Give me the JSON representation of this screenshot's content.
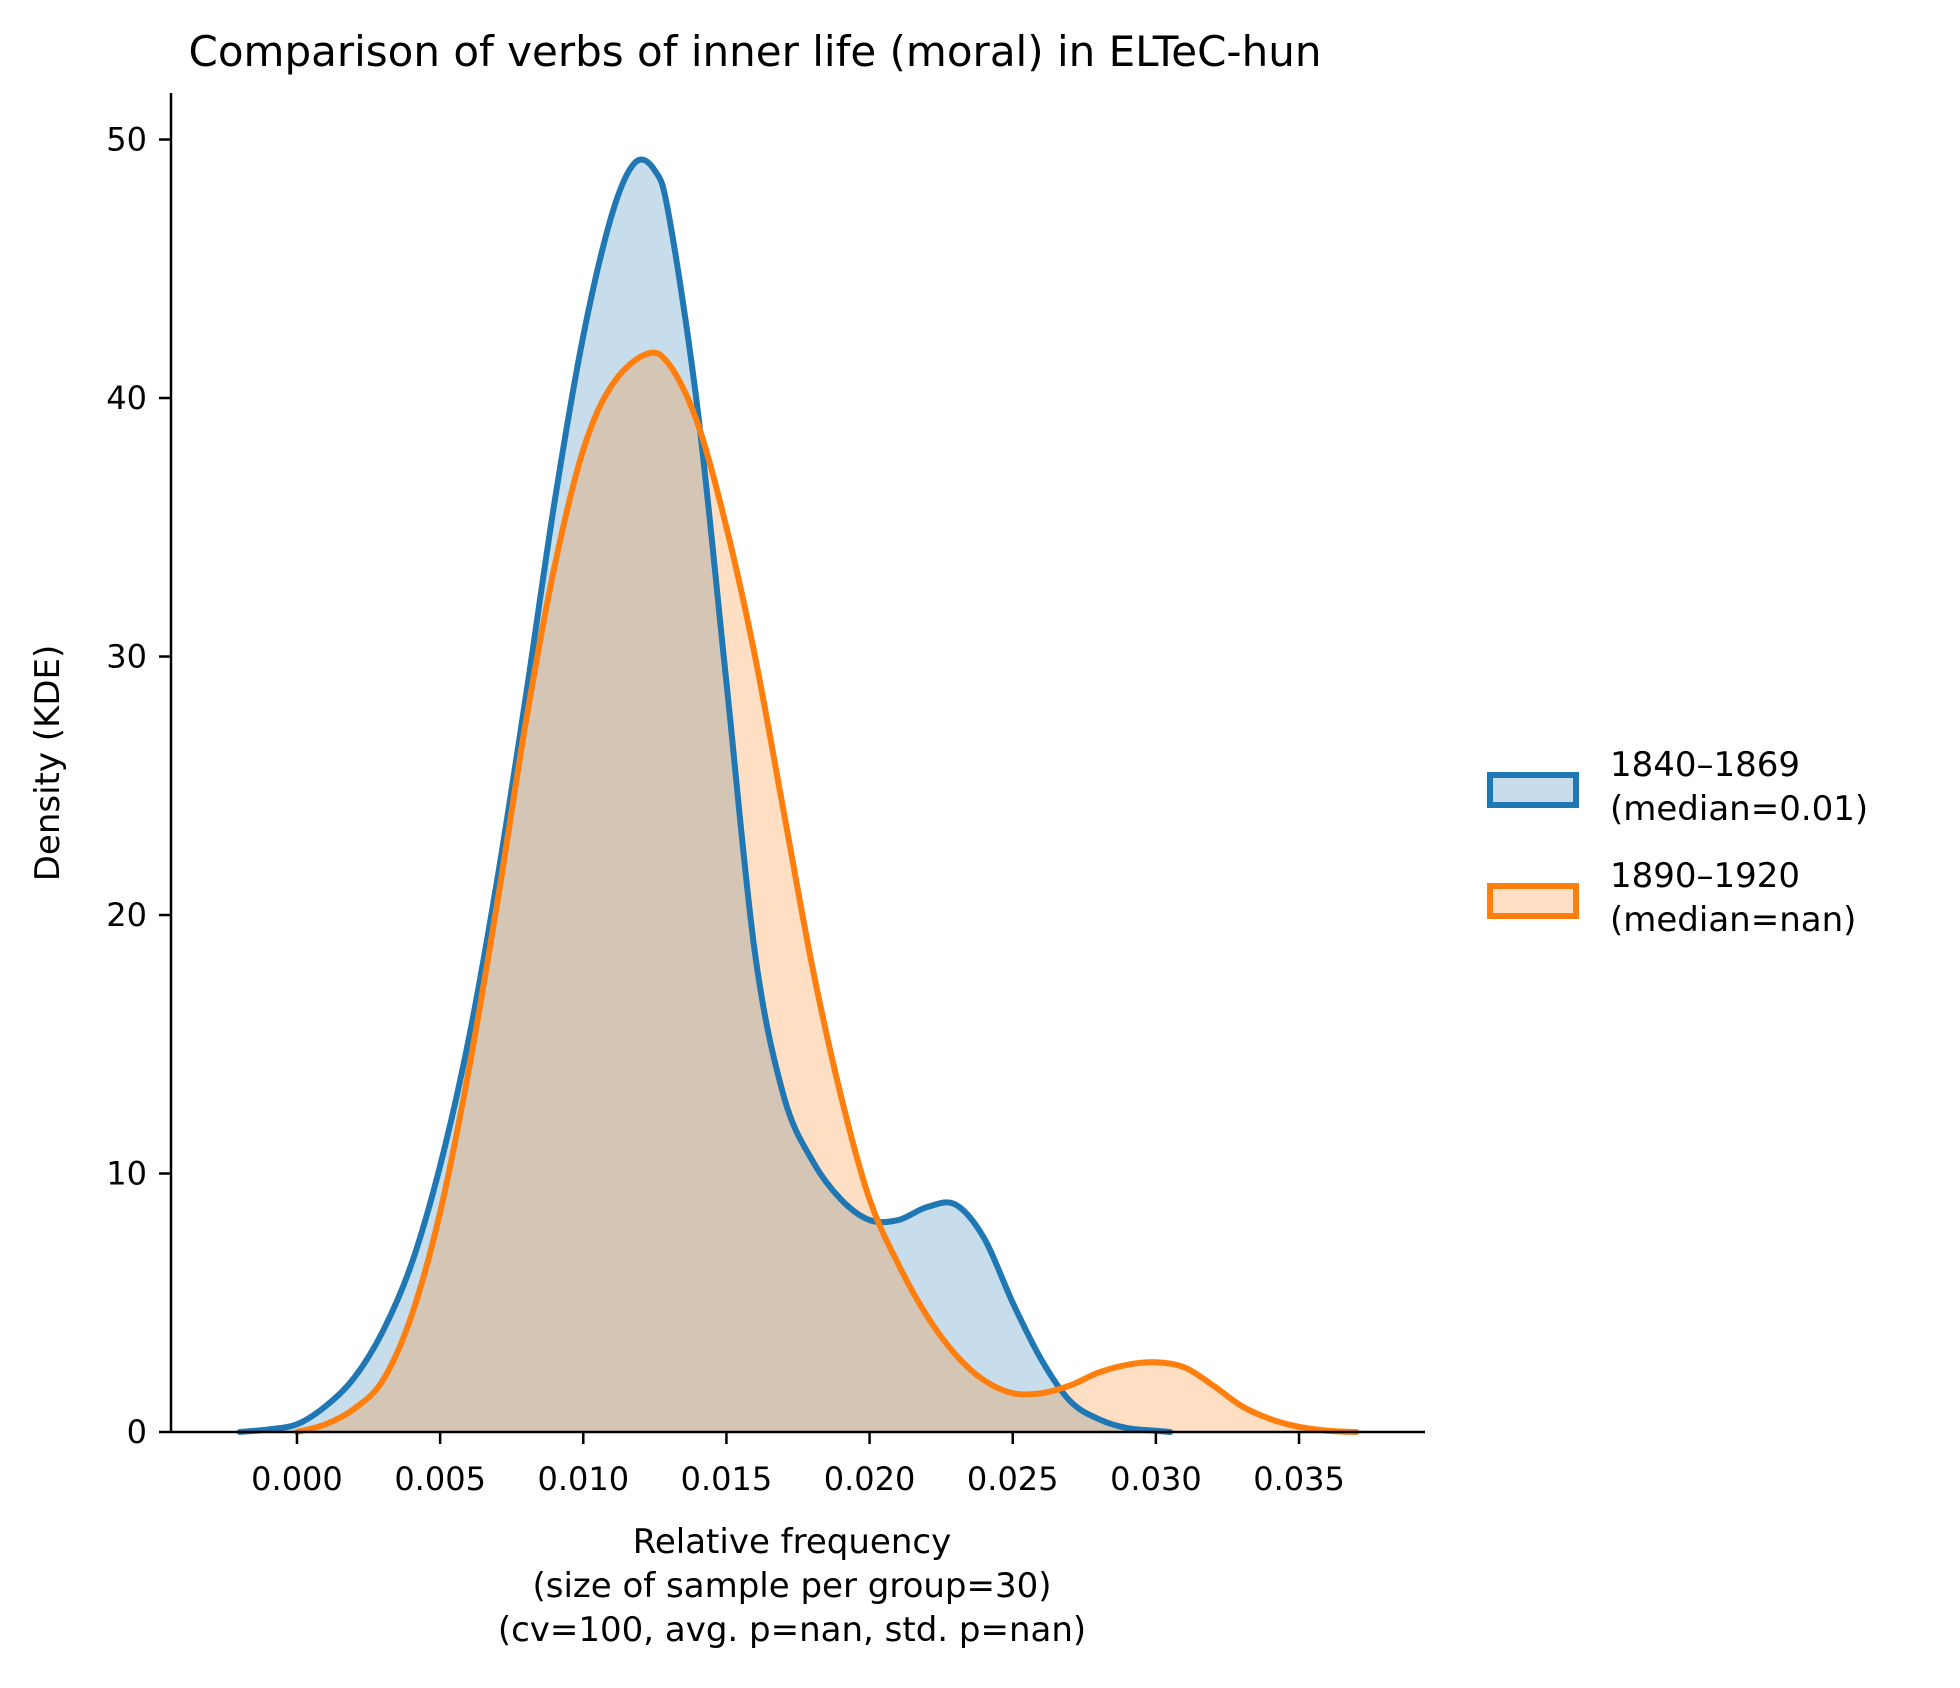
{
  "chart_data": {
    "type": "area",
    "title": "Comparison of verbs of inner life (moral) in ELTeC-hun",
    "xlabel_lines": [
      "Relative frequency",
      "(size of sample per group=30)",
      "(cv=100, avg. p=nan, std. p=nan)"
    ],
    "ylabel": "Density (KDE)",
    "xlim": [
      -0.0044,
      0.0394
    ],
    "ylim": [
      0,
      51.8
    ],
    "x_ticks": [
      0.0,
      0.005,
      0.01,
      0.015,
      0.02,
      0.025,
      0.03,
      0.035
    ],
    "x_tick_labels": [
      "0.000",
      "0.005",
      "0.010",
      "0.015",
      "0.020",
      "0.025",
      "0.030",
      "0.035"
    ],
    "y_ticks": [
      0,
      10,
      20,
      30,
      40,
      50
    ],
    "y_tick_labels": [
      "0",
      "10",
      "20",
      "30",
      "40",
      "50"
    ],
    "grid": false,
    "legend_position": "right",
    "series": [
      {
        "name": "1840–1869",
        "legend_lines": [
          "1840–1869",
          "(median=0.01)"
        ],
        "line_color": "#1f77b4",
        "fill_color": "#1f77b4",
        "fill_opacity": 0.25,
        "points": [
          [
            -0.002,
            0.0
          ],
          [
            -0.001,
            0.1
          ],
          [
            0.0,
            0.3
          ],
          [
            0.001,
            1.0
          ],
          [
            0.002,
            2.1
          ],
          [
            0.003,
            3.9
          ],
          [
            0.004,
            6.5
          ],
          [
            0.005,
            10.3
          ],
          [
            0.006,
            15.2
          ],
          [
            0.007,
            21.4
          ],
          [
            0.008,
            28.5
          ],
          [
            0.009,
            36.0
          ],
          [
            0.01,
            42.4
          ],
          [
            0.011,
            47.1
          ],
          [
            0.0118,
            49.1
          ],
          [
            0.0125,
            48.8
          ],
          [
            0.013,
            47.0
          ],
          [
            0.014,
            39.5
          ],
          [
            0.015,
            29.0
          ],
          [
            0.016,
            18.5
          ],
          [
            0.017,
            13.0
          ],
          [
            0.018,
            10.5
          ],
          [
            0.019,
            9.0
          ],
          [
            0.02,
            8.2
          ],
          [
            0.021,
            8.2
          ],
          [
            0.022,
            8.7
          ],
          [
            0.023,
            8.8
          ],
          [
            0.024,
            7.5
          ],
          [
            0.025,
            5.0
          ],
          [
            0.026,
            2.8
          ],
          [
            0.027,
            1.2
          ],
          [
            0.028,
            0.5
          ],
          [
            0.029,
            0.15
          ],
          [
            0.03,
            0.05
          ],
          [
            0.0305,
            0.0
          ]
        ]
      },
      {
        "name": "1890–1920",
        "legend_lines": [
          "1890–1920",
          "(median=nan)"
        ],
        "line_color": "#ff7f0e",
        "fill_color": "#ff7f0e",
        "fill_opacity": 0.25,
        "points": [
          [
            0.0,
            0.0
          ],
          [
            0.001,
            0.3
          ],
          [
            0.002,
            0.9
          ],
          [
            0.003,
            2.0
          ],
          [
            0.004,
            4.5
          ],
          [
            0.005,
            8.5
          ],
          [
            0.006,
            14.0
          ],
          [
            0.007,
            20.5
          ],
          [
            0.008,
            27.5
          ],
          [
            0.009,
            33.5
          ],
          [
            0.01,
            38.0
          ],
          [
            0.011,
            40.5
          ],
          [
            0.0122,
            41.7
          ],
          [
            0.013,
            41.3
          ],
          [
            0.014,
            39.0
          ],
          [
            0.015,
            35.0
          ],
          [
            0.016,
            30.0
          ],
          [
            0.017,
            24.0
          ],
          [
            0.018,
            18.0
          ],
          [
            0.019,
            13.0
          ],
          [
            0.02,
            9.0
          ],
          [
            0.021,
            6.5
          ],
          [
            0.022,
            4.5
          ],
          [
            0.023,
            3.0
          ],
          [
            0.024,
            2.0
          ],
          [
            0.025,
            1.5
          ],
          [
            0.026,
            1.5
          ],
          [
            0.027,
            1.8
          ],
          [
            0.028,
            2.3
          ],
          [
            0.029,
            2.6
          ],
          [
            0.03,
            2.7
          ],
          [
            0.031,
            2.5
          ],
          [
            0.032,
            1.8
          ],
          [
            0.033,
            1.0
          ],
          [
            0.034,
            0.5
          ],
          [
            0.035,
            0.2
          ],
          [
            0.036,
            0.05
          ],
          [
            0.037,
            0.0
          ]
        ]
      }
    ]
  }
}
